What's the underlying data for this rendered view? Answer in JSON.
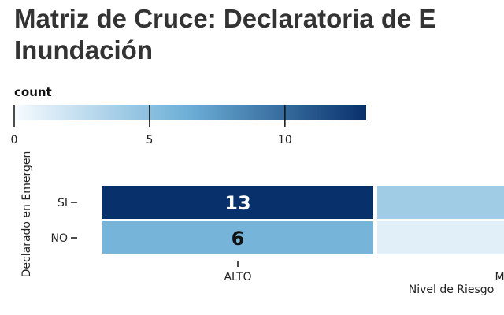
{
  "title_lines": [
    "Matriz de Cruce: Declaratoria de E",
    "Inundación"
  ],
  "colors": {
    "scale_low": "#f7fbff",
    "scale_mid": "#6baed6",
    "scale_high": "#08306b",
    "text_on_dark": "#ffffff",
    "text_on_light": "#111111"
  },
  "chart_data": {
    "type": "heatmap",
    "title": "Matriz de Cruce: Declaratoria de E Inundación",
    "colorbar": {
      "label": "count",
      "min": 0,
      "max": 13,
      "ticks": [
        0,
        5,
        10
      ]
    },
    "x": {
      "label": "Nivel de Riesgo",
      "categories": [
        "ALTO",
        "MUY A"
      ]
    },
    "y": {
      "label": "Declarado en Emergen",
      "categories": [
        "SI",
        "NO"
      ]
    },
    "values": [
      [
        13,
        4
      ],
      [
        6,
        1
      ]
    ]
  }
}
